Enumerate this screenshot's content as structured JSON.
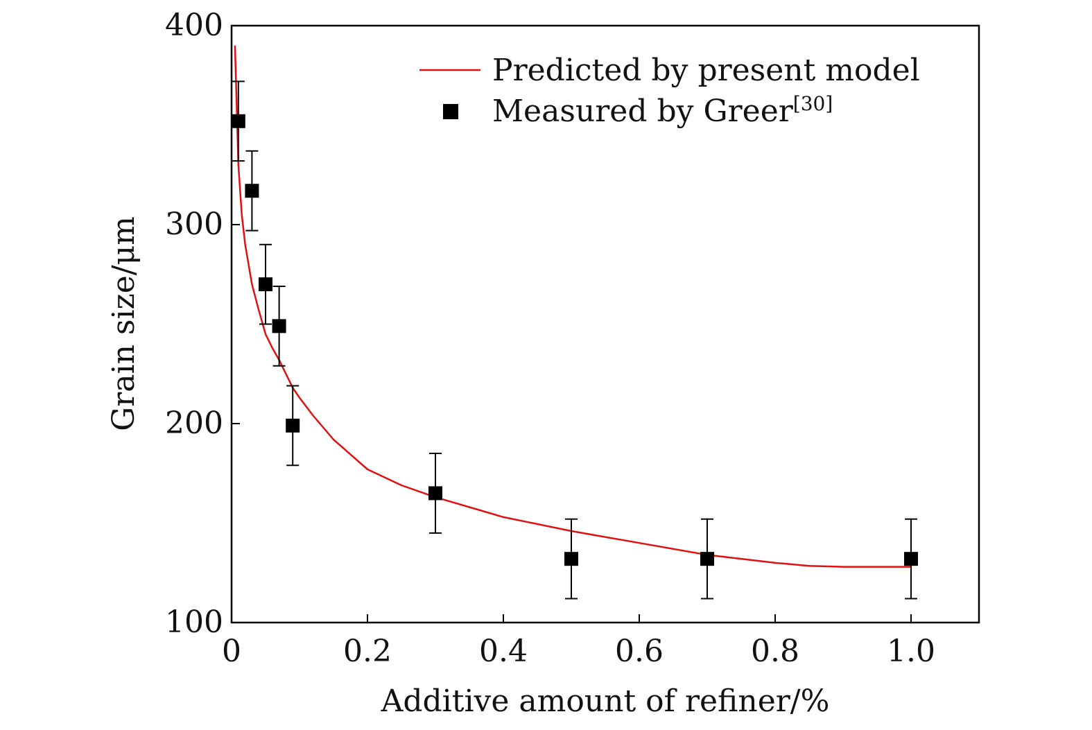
{
  "chart_data": {
    "type": "scatter",
    "xlabel": "Additive amount of refiner/%",
    "ylabel": "Grain size/μm",
    "xlim": [
      0,
      1.1
    ],
    "ylim": [
      100,
      400
    ],
    "x_ticks": [
      0,
      0.2,
      0.4,
      0.6,
      0.8,
      1.0
    ],
    "x_tick_labels": [
      "0",
      "0.2",
      "0.4",
      "0.6",
      "0.8",
      "1.0"
    ],
    "y_ticks": [
      100,
      200,
      300,
      400
    ],
    "y_tick_labels": [
      "100",
      "200",
      "300",
      "400"
    ],
    "grid": false,
    "legend_position": "top-right",
    "series": [
      {
        "name": "Predicted by present model",
        "kind": "line",
        "color": "#e01010",
        "x": [
          0.005,
          0.01,
          0.015,
          0.02,
          0.03,
          0.04,
          0.05,
          0.06,
          0.07,
          0.08,
          0.09,
          0.1,
          0.12,
          0.15,
          0.2,
          0.25,
          0.3,
          0.35,
          0.4,
          0.5,
          0.6,
          0.7,
          0.8,
          0.85,
          0.9,
          0.95,
          1.0
        ],
        "y": [
          390,
          330,
          305,
          290,
          270,
          257,
          245,
          238,
          232,
          225,
          218,
          213,
          204,
          192,
          177,
          169,
          163,
          158,
          153,
          146,
          140,
          134,
          130,
          128.5,
          128,
          128,
          128
        ]
      },
      {
        "name": "Measured by Greer",
        "name_superscript": "[30]",
        "kind": "marker",
        "color": "#000000",
        "marker": "square",
        "x": [
          0.01,
          0.03,
          0.05,
          0.07,
          0.09,
          0.3,
          0.5,
          0.7,
          1.0
        ],
        "y": [
          352,
          317,
          270,
          249,
          199,
          165,
          132,
          132,
          132
        ],
        "error": [
          20,
          20,
          20,
          20,
          20,
          20,
          20,
          20,
          20
        ]
      }
    ]
  }
}
